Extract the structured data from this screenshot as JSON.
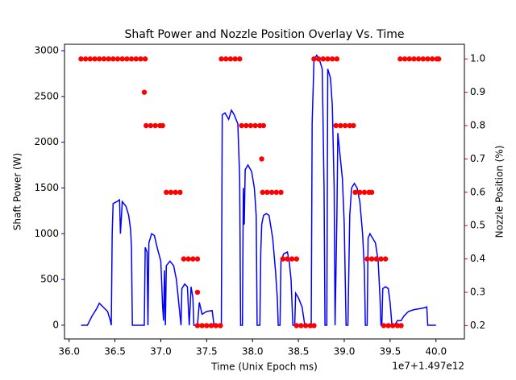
{
  "chart_data": {
    "type": "line",
    "title": "Shaft Power and Nozzle Position Overlay Vs. Time",
    "x_label": "Time (Unix Epoch ms)",
    "x_offset_label": "1e7+1.497e12",
    "y_label": "Shaft Power (W)",
    "y2_label": "Nozzle Position (%)",
    "xlim": [
      35.95,
      40.31
    ],
    "xticks": [
      {
        "value": 36,
        "label": "36.0"
      },
      {
        "value": 36.5,
        "label": "36.5"
      },
      {
        "value": 37,
        "label": "37.0"
      },
      {
        "value": 37.5,
        "label": "37.5"
      },
      {
        "value": 38,
        "label": "38.0"
      },
      {
        "value": 38.5,
        "label": "38.5"
      },
      {
        "value": 39,
        "label": "39.0"
      },
      {
        "value": 39.5,
        "label": "39.5"
      },
      {
        "value": 40,
        "label": "40.0"
      }
    ],
    "ylim": [
      -150,
      3070
    ],
    "yticks": [
      0,
      500,
      1000,
      1500,
      2000,
      2500,
      3000
    ],
    "y_color": "#0000ff",
    "y2lim": [
      0.16,
      1.044
    ],
    "y2ticks": [
      0.2,
      0.3,
      0.4,
      0.5,
      0.6,
      0.7,
      0.8,
      0.9,
      {
        "value": 1,
        "label": "1.0"
      }
    ],
    "y2_color": "#ff0000",
    "series": [
      {
        "type": "line",
        "color": "#0000ff",
        "x": [
          36.13,
          36.2,
          36.25,
          36.3,
          36.33,
          36.37,
          36.42,
          36.45,
          36.46,
          36.47,
          36.48,
          36.52,
          36.55,
          36.56,
          36.58,
          36.62,
          36.65,
          36.67,
          36.68,
          36.69,
          36.82,
          36.83,
          36.85,
          36.86,
          36.87,
          36.9,
          36.93,
          36.96,
          37.0,
          37.02,
          37.03,
          37.04,
          37.05,
          37.06,
          37.1,
          37.14,
          37.17,
          37.2,
          37.22,
          37.23,
          37.26,
          37.29,
          37.31,
          37.33,
          37.35,
          37.36,
          37.4,
          37.42,
          37.45,
          37.5,
          37.56,
          37.58,
          37.66,
          37.67,
          37.7,
          37.74,
          37.77,
          37.8,
          37.84,
          37.86,
          37.87,
          37.89,
          37.9,
          37.91,
          37.92,
          37.95,
          37.99,
          38.02,
          38.04,
          38.05,
          38.08,
          38.09,
          38.1,
          38.12,
          38.15,
          38.18,
          38.22,
          38.25,
          38.27,
          38.28,
          38.3,
          38.31,
          38.34,
          38.38,
          38.4,
          38.42,
          38.44,
          38.46,
          38.47,
          38.5,
          38.54,
          38.57,
          38.64,
          38.65,
          38.67,
          38.7,
          38.73,
          38.76,
          38.78,
          38.79,
          38.81,
          38.82,
          38.85,
          38.87,
          38.89,
          38.9,
          38.92,
          38.93,
          38.95,
          38.98,
          39.0,
          39.02,
          39.04,
          39.06,
          39.08,
          39.11,
          39.14,
          39.17,
          39.2,
          39.22,
          39.23,
          39.25,
          39.26,
          39.28,
          39.31,
          39.34,
          39.37,
          39.39,
          39.4,
          39.41,
          39.42,
          39.45,
          39.48,
          39.5,
          39.52,
          39.55,
          39.58,
          39.62,
          39.65,
          39.7,
          39.76,
          39.82,
          39.87,
          39.9,
          39.91,
          40.0
        ],
        "values": [
          0,
          0,
          100,
          180,
          240,
          200,
          150,
          50,
          0,
          1000,
          1330,
          1350,
          1370,
          1000,
          1350,
          1300,
          1200,
          1050,
          850,
          0,
          0,
          850,
          800,
          0,
          900,
          1000,
          980,
          850,
          700,
          200,
          50,
          600,
          0,
          650,
          700,
          650,
          500,
          200,
          0,
          400,
          450,
          420,
          0,
          420,
          300,
          0,
          0,
          250,
          120,
          150,
          160,
          0,
          0,
          2300,
          2320,
          2250,
          2350,
          2300,
          2200,
          1600,
          0,
          0,
          1500,
          1100,
          1700,
          1750,
          1680,
          1500,
          1200,
          0,
          0,
          800,
          1100,
          1200,
          1220,
          1200,
          950,
          600,
          300,
          0,
          0,
          700,
          780,
          800,
          700,
          500,
          0,
          0,
          350,
          300,
          200,
          0,
          0,
          2200,
          2900,
          2950,
          2900,
          2800,
          1500,
          0,
          0,
          2800,
          2700,
          2400,
          1500,
          0,
          1200,
          2100,
          1900,
          1600,
          1100,
          0,
          0,
          1200,
          1500,
          1550,
          1500,
          1350,
          1000,
          600,
          0,
          0,
          950,
          1000,
          950,
          900,
          700,
          300,
          0,
          0,
          400,
          420,
          400,
          250,
          0,
          0,
          50,
          50,
          100,
          150,
          170,
          180,
          190,
          200,
          0,
          0
        ]
      },
      {
        "type": "scatter",
        "axis": "y2",
        "color": "#ff0000",
        "x": [
          36.13,
          36.18,
          36.23,
          36.28,
          36.33,
          36.38,
          36.43,
          36.48,
          36.53,
          36.58,
          36.63,
          36.68,
          36.73,
          36.78,
          36.83,
          36.82,
          36.84,
          36.89,
          36.94,
          36.99,
          37.02,
          37.06,
          37.11,
          37.16,
          37.21,
          37.25,
          37.3,
          37.35,
          37.4,
          37.4,
          37.4,
          37.45,
          37.5,
          37.55,
          37.6,
          37.65,
          37.66,
          37.71,
          37.76,
          37.81,
          37.86,
          37.88,
          37.93,
          37.98,
          38.03,
          38.08,
          38.12,
          38.1,
          38.11,
          38.16,
          38.21,
          38.26,
          38.31,
          38.33,
          38.38,
          38.43,
          38.48,
          38.48,
          38.53,
          38.58,
          38.63,
          38.67,
          38.67,
          38.72,
          38.77,
          38.82,
          38.87,
          38.92,
          38.91,
          38.96,
          39.01,
          39.06,
          39.1,
          39.12,
          39.17,
          39.22,
          39.27,
          39.3,
          39.25,
          39.3,
          39.35,
          39.4,
          39.45,
          39.43,
          39.48,
          39.53,
          39.58,
          39.62,
          39.61,
          39.66,
          39.71,
          39.76,
          39.81,
          39.86,
          39.91,
          39.96,
          40.01,
          40.03
        ],
        "values": [
          1,
          1,
          1,
          1,
          1,
          1,
          1,
          1,
          1,
          1,
          1,
          1,
          1,
          1,
          1,
          0.9,
          0.8,
          0.8,
          0.8,
          0.8,
          0.8,
          0.6,
          0.6,
          0.6,
          0.6,
          0.4,
          0.4,
          0.4,
          0.4,
          0.3,
          0.2,
          0.2,
          0.2,
          0.2,
          0.2,
          0.2,
          1,
          1,
          1,
          1,
          1,
          0.8,
          0.8,
          0.8,
          0.8,
          0.8,
          0.8,
          0.7,
          0.6,
          0.6,
          0.6,
          0.6,
          0.6,
          0.4,
          0.4,
          0.4,
          0.4,
          0.2,
          0.2,
          0.2,
          0.2,
          0.2,
          1,
          1,
          1,
          1,
          1,
          1,
          0.8,
          0.8,
          0.8,
          0.8,
          0.8,
          0.6,
          0.6,
          0.6,
          0.6,
          0.6,
          0.4,
          0.4,
          0.4,
          0.4,
          0.4,
          0.2,
          0.2,
          0.2,
          0.2,
          0.2,
          1,
          1,
          1,
          1,
          1,
          1,
          1,
          1,
          1,
          1
        ]
      }
    ]
  }
}
